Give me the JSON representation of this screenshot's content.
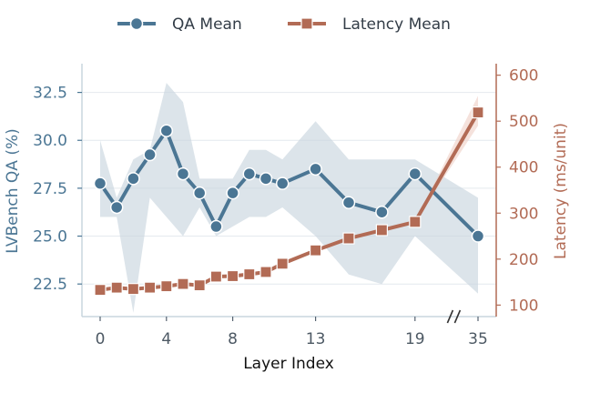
{
  "chart_data": {
    "type": "line",
    "xlabel": "Layer Index",
    "x_ticks": [
      "0",
      "4",
      "8",
      "13",
      "19",
      "35"
    ],
    "x_break_after": "19",
    "y_left": {
      "label": "LVBench QA (%)",
      "ticks": [
        "22.5",
        "25.0",
        "27.5",
        "30.0",
        "32.5"
      ],
      "ylim": [
        20.8,
        34.0
      ]
    },
    "y_right": {
      "label": "Latency (ms/unit)",
      "ticks": [
        "100",
        "200",
        "300",
        "400",
        "500",
        "600"
      ],
      "ylim": [
        75,
        625
      ]
    },
    "legend": {
      "placement": "top-center"
    },
    "grid": true,
    "series": [
      {
        "name": "QA Mean",
        "axis": "left",
        "marker": "circle",
        "color": "#4b7694",
        "band_color": "#c9d5de",
        "points": [
          {
            "x": "0",
            "y": 27.75,
            "lo": 26.0,
            "hi": 30.0
          },
          {
            "x": "1",
            "y": 26.5,
            "lo": 26.0,
            "hi": 27.0
          },
          {
            "x": "2",
            "y": 28.0,
            "lo": 21.0,
            "hi": 29.0
          },
          {
            "x": "3",
            "y": 29.25,
            "lo": 27.0,
            "hi": 29.5
          },
          {
            "x": "4",
            "y": 30.5,
            "lo": 26.0,
            "hi": 33.0
          },
          {
            "x": "5",
            "y": 28.25,
            "lo": 25.0,
            "hi": 32.0
          },
          {
            "x": "6",
            "y": 27.25,
            "lo": 26.5,
            "hi": 28.0
          },
          {
            "x": "7",
            "y": 25.5,
            "lo": 25.0,
            "hi": 28.0
          },
          {
            "x": "8",
            "y": 27.25,
            "lo": 25.5,
            "hi": 28.0
          },
          {
            "x": "9",
            "y": 28.25,
            "lo": 26.0,
            "hi": 29.5
          },
          {
            "x": "10",
            "y": 28.0,
            "lo": 26.0,
            "hi": 29.5
          },
          {
            "x": "11",
            "y": 27.75,
            "lo": 26.5,
            "hi": 29.0
          },
          {
            "x": "13",
            "y": 28.5,
            "lo": 25.0,
            "hi": 31.0
          },
          {
            "x": "15",
            "y": 26.75,
            "lo": 23.0,
            "hi": 29.0
          },
          {
            "x": "17",
            "y": 26.25,
            "lo": 22.5,
            "hi": 29.0
          },
          {
            "x": "19",
            "y": 28.25,
            "lo": 25.0,
            "hi": 29.0
          },
          {
            "x": "35",
            "y": 25.0,
            "lo": 22.0,
            "hi": 27.0
          }
        ]
      },
      {
        "name": "Latency Mean",
        "axis": "right",
        "marker": "square",
        "color": "#b26b55",
        "band_color": "#f0d2ca",
        "points": [
          {
            "x": "0",
            "y": 133
          },
          {
            "x": "1",
            "y": 138
          },
          {
            "x": "2",
            "y": 135
          },
          {
            "x": "3",
            "y": 138
          },
          {
            "x": "4",
            "y": 141
          },
          {
            "x": "5",
            "y": 146
          },
          {
            "x": "6",
            "y": 143
          },
          {
            "x": "7",
            "y": 162
          },
          {
            "x": "8",
            "y": 163
          },
          {
            "x": "9",
            "y": 167
          },
          {
            "x": "10",
            "y": 172
          },
          {
            "x": "11",
            "y": 190
          },
          {
            "x": "13",
            "y": 219
          },
          {
            "x": "15",
            "y": 245
          },
          {
            "x": "17",
            "y": 263
          },
          {
            "x": "19",
            "y": 281
          },
          {
            "x": "35",
            "y": 519,
            "lo": 490,
            "hi": 555
          }
        ]
      }
    ]
  }
}
